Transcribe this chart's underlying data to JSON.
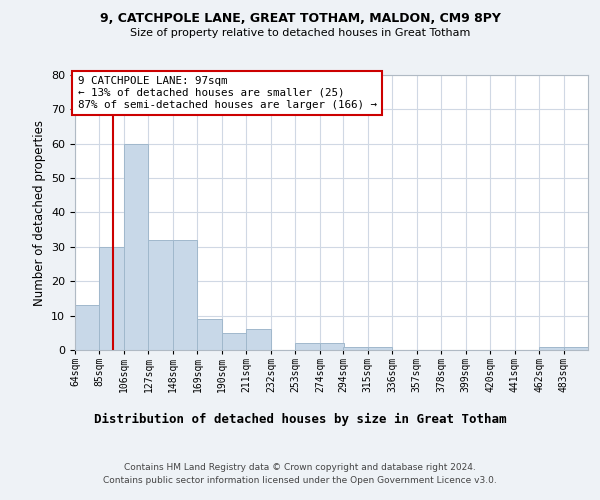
{
  "title1": "9, CATCHPOLE LANE, GREAT TOTHAM, MALDON, CM9 8PY",
  "title2": "Size of property relative to detached houses in Great Totham",
  "xlabel": "Distribution of detached houses by size in Great Totham",
  "ylabel": "Number of detached properties",
  "footer1": "Contains HM Land Registry data © Crown copyright and database right 2024.",
  "footer2": "Contains public sector information licensed under the Open Government Licence v3.0.",
  "annotation_line1": "9 CATCHPOLE LANE: 97sqm",
  "annotation_line2": "← 13% of detached houses are smaller (25)",
  "annotation_line3": "87% of semi-detached houses are larger (166) →",
  "bar_color": "#c8d8e8",
  "bar_edge_color": "#a0b8cc",
  "ref_line_color": "#cc0000",
  "ref_line_x": 97,
  "categories": [
    "64sqm",
    "85sqm",
    "106sqm",
    "127sqm",
    "148sqm",
    "169sqm",
    "190sqm",
    "211sqm",
    "232sqm",
    "253sqm",
    "274sqm",
    "294sqm",
    "315sqm",
    "336sqm",
    "357sqm",
    "378sqm",
    "399sqm",
    "420sqm",
    "441sqm",
    "462sqm",
    "483sqm"
  ],
  "bin_edges": [
    64,
    85,
    106,
    127,
    148,
    169,
    190,
    211,
    232,
    253,
    274,
    294,
    315,
    336,
    357,
    378,
    399,
    420,
    441,
    462,
    483,
    504
  ],
  "values": [
    13,
    30,
    60,
    32,
    32,
    9,
    5,
    6,
    0,
    2,
    2,
    1,
    1,
    0,
    0,
    0,
    0,
    0,
    0,
    1,
    1
  ],
  "ylim": [
    0,
    80
  ],
  "yticks": [
    0,
    10,
    20,
    30,
    40,
    50,
    60,
    70,
    80
  ],
  "background_color": "#eef2f6",
  "plot_bg_color": "#ffffff",
  "grid_color": "#d0d8e4"
}
